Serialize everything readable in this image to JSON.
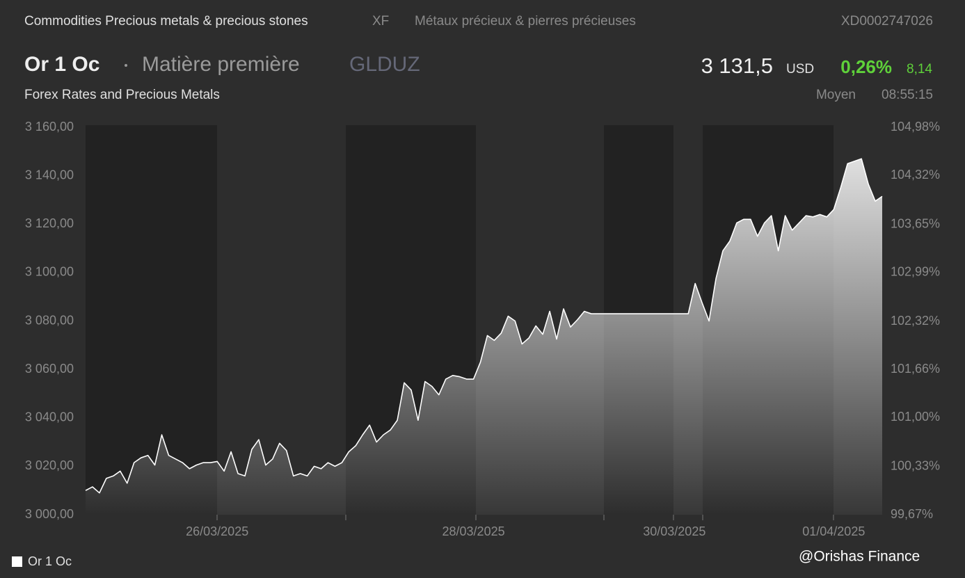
{
  "header": {
    "sector": "Commodities Precious metals & precious stones",
    "code": "XF",
    "sector_fr": "Métaux précieux & pierres précieuses",
    "isin": "XD0002747026",
    "name": "Or 1 Oc",
    "kind": "Matière première",
    "ticker": "GLDUZ",
    "price": "3 131,5",
    "currency": "USD",
    "change_pct": "0,26%",
    "change": "8,14",
    "source": "Forex Rates and Precious Metals",
    "price_type": "Moyen",
    "time": "08:55:15"
  },
  "watermark": "@Orishas Finance",
  "chart_data": {
    "type": "area",
    "categories": [
      null,
      null,
      null,
      null,
      null,
      null,
      null,
      null,
      null,
      null,
      null,
      null,
      null,
      null,
      null,
      null,
      null,
      null,
      null,
      "26/03/2025",
      null,
      null,
      null,
      null,
      null,
      null,
      null,
      null,
      null,
      null,
      null,
      null,
      null,
      null,
      null,
      null,
      null,
      null,
      null,
      null,
      null,
      null,
      null,
      null,
      null,
      null,
      null,
      null,
      null,
      null,
      null,
      null,
      null,
      null,
      null,
      null,
      "28/03/2025",
      null,
      null,
      null,
      null,
      null,
      null,
      null,
      null,
      null,
      null,
      null,
      null,
      null,
      null,
      null,
      null,
      null,
      null,
      null,
      null,
      null,
      null,
      null,
      null,
      null,
      null,
      null,
      null,
      "30/03/2025",
      null,
      null,
      null,
      null,
      null,
      null,
      null,
      null,
      null,
      null,
      null,
      null,
      null,
      null,
      null,
      null,
      null,
      null,
      null,
      null,
      null,
      null,
      "01/04/2025",
      null,
      null,
      null,
      null,
      null,
      null,
      null
    ],
    "series": [
      {
        "name": "Or 1 Oc",
        "color": "#ffffff",
        "values": [
          3010,
          3011.5,
          3009,
          3015,
          3016,
          3018,
          3013,
          3021.5,
          3023.5,
          3024.5,
          3020.5,
          3033,
          3024.5,
          3023,
          3021.5,
          3019,
          3020.5,
          3021.5,
          3021.5,
          3022,
          3018,
          3026,
          3017,
          3016,
          3027,
          3031,
          3020.5,
          3023,
          3029.5,
          3026.5,
          3016,
          3017,
          3016,
          3020,
          3019,
          3021.5,
          3020,
          3021.5,
          3026,
          3028.5,
          3033,
          3037,
          3030,
          3033,
          3035,
          3039,
          3054.5,
          3051.5,
          3039,
          3055,
          3053,
          3049.5,
          3056,
          3057.5,
          3057,
          3056,
          3056,
          3063,
          3074,
          3072,
          3075,
          3082,
          3080,
          3070.5,
          3073,
          3078,
          3074.5,
          3084,
          3072.5,
          3085,
          3077.5,
          3080.5,
          3084,
          3083,
          3083,
          3083,
          3083,
          3083,
          3083,
          3083,
          3083,
          3083,
          3083,
          3083,
          3083,
          3083,
          3083,
          3083,
          3095.5,
          3087.5,
          3080,
          3097.5,
          3109,
          3113,
          3120.5,
          3122,
          3122,
          3115,
          3120.5,
          3123.5,
          3109,
          3123.5,
          3117.5,
          3120.5,
          3123.5,
          3123,
          3124,
          3123,
          3126,
          3135,
          3145,
          3146,
          3147,
          3136.5,
          3129.5,
          3131.5
        ]
      }
    ],
    "ylim": [
      3000,
      3160
    ],
    "yticks": [
      {
        "value": 3000,
        "label": "3 000,00"
      },
      {
        "value": 3020,
        "label": "3 020,00"
      },
      {
        "value": 3040,
        "label": "3 040,00"
      },
      {
        "value": 3060,
        "label": "3 060,00"
      },
      {
        "value": 3080,
        "label": "3 080,00"
      },
      {
        "value": 3100,
        "label": "3 100,00"
      },
      {
        "value": 3120,
        "label": "3 120,00"
      },
      {
        "value": 3140,
        "label": "3 140,00"
      },
      {
        "value": 3160,
        "label": "3 160,00"
      }
    ],
    "y2lim": [
      99.67,
      104.98
    ],
    "y2ticks": [
      {
        "value": 99.67,
        "label": "99,67%"
      },
      {
        "value": 100.33,
        "label": "100,33%"
      },
      {
        "value": 101,
        "label": "101,00%"
      },
      {
        "value": 101.66,
        "label": "101,66%"
      },
      {
        "value": 102.32,
        "label": "102,32%"
      },
      {
        "value": 102.99,
        "label": "102,99%"
      },
      {
        "value": 103.65,
        "label": "103,65%"
      },
      {
        "value": 104.32,
        "label": "104,32%"
      },
      {
        "value": 104.98,
        "label": "104,98%"
      }
    ],
    "grid": false,
    "legend": "bottom-left"
  }
}
